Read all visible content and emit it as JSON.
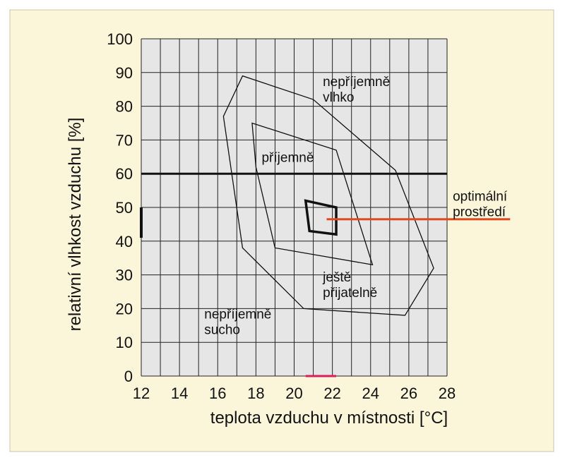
{
  "chart_data": {
    "type": "line",
    "title": "",
    "xlabel": "teplota vzduchu v místnosti [°C]",
    "ylabel": "relativní vlhkost vzduchu [%]",
    "xlim": [
      12,
      28
    ],
    "ylim": [
      0,
      100
    ],
    "x_ticks": [
      "12",
      "14",
      "16",
      "18",
      "20",
      "22",
      "24",
      "26",
      "28"
    ],
    "y_ticks": [
      "0",
      "10",
      "20",
      "30",
      "40",
      "50",
      "60",
      "70",
      "80",
      "90",
      "100"
    ],
    "grid": true,
    "background_color": "#fbf5d9",
    "plot_color": "#e6e6e6",
    "line_color": "#111111",
    "accent_color": "#e04a1e",
    "marker_color": "#d81e5b",
    "reference_line": {
      "y": 60
    },
    "regions": [
      {
        "label": "",
        "points": [
          [
            16.3,
            77
          ],
          [
            17.3,
            89
          ],
          [
            21,
            82
          ],
          [
            25.3,
            61
          ],
          [
            27.3,
            32
          ],
          [
            25.8,
            18
          ],
          [
            20.5,
            20
          ],
          [
            17.3,
            38
          ]
        ],
        "stroke_width": 1.3
      },
      {
        "label": "",
        "points": [
          [
            17.8,
            75
          ],
          [
            22.2,
            67
          ],
          [
            24.1,
            33
          ],
          [
            19,
            38
          ],
          [
            18,
            62
          ]
        ],
        "stroke_width": 1.3
      },
      {
        "label": "",
        "points": [
          [
            20.6,
            52
          ],
          [
            22.2,
            50
          ],
          [
            22.2,
            42
          ],
          [
            20.8,
            43
          ]
        ],
        "stroke_width": 3.5
      }
    ],
    "annotations": [
      {
        "lines": [
          "nepříjemně",
          "vlhko"
        ],
        "x": 21.5,
        "y": 86
      },
      {
        "lines": [
          "příjemně"
        ],
        "x": 18.3,
        "y": 63.5
      },
      {
        "lines": [
          "ještě",
          "přijatelně"
        ],
        "x": 21.5,
        "y": 28
      },
      {
        "lines": [
          "nepříjemně",
          "sucho"
        ],
        "x": 15.3,
        "y": 17
      },
      {
        "lines": [
          "optimální",
          "prostředí"
        ],
        "x": 28.3,
        "y": 52
      }
    ],
    "pointer": {
      "from": [
        21.7,
        46.5
      ],
      "to": [
        31.3,
        46.5
      ]
    },
    "axis_marks": [
      {
        "axis": "y",
        "at_x": 12,
        "from": 41,
        "to": 50
      },
      {
        "axis": "x",
        "at_y": 0,
        "from": 20.6,
        "to": 22.2
      }
    ]
  }
}
